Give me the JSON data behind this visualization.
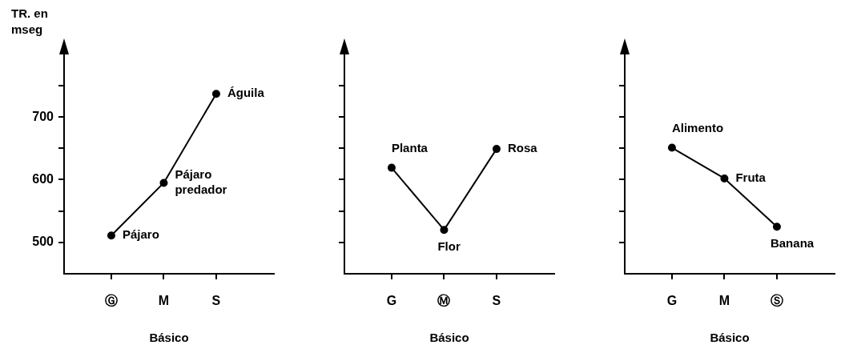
{
  "chart_data": [
    {
      "type": "line",
      "categories": [
        "Ⓖ",
        "M",
        "S"
      ],
      "values": [
        511,
        595,
        737
      ],
      "color": "#000000",
      "marker": "circle",
      "xlabel": "Básico",
      "ylabel": "TR. en mseg",
      "ylim": [
        450,
        810
      ],
      "yticks": [
        500,
        {
          "value": 550,
          "label": null
        },
        600,
        {
          "value": 650,
          "label": null
        },
        700,
        {
          "value": 750,
          "label": null
        }
      ],
      "annotations": [
        {
          "text": "Pájaro",
          "x": "Ⓖ",
          "y": 511
        },
        {
          "text": "Pájaro predador",
          "x": "M",
          "y": 595
        },
        {
          "text": "Águila",
          "x": "S",
          "y": 737
        }
      ]
    },
    {
      "type": "line",
      "categories": [
        "G",
        "Ⓜ",
        "S"
      ],
      "values": [
        619,
        520,
        649
      ],
      "color": "#000000",
      "marker": "circle",
      "xlabel": "Básico",
      "ylim": [
        450,
        810
      ],
      "tick_labels": "x",
      "yticks": [
        {
          "value": 500,
          "label": null
        },
        {
          "value": 550,
          "label": null
        },
        {
          "value": 600,
          "label": null
        },
        {
          "value": 650,
          "label": null
        },
        {
          "value": 700,
          "label": null
        },
        {
          "value": 750,
          "label": null
        }
      ],
      "annotations": [
        {
          "text": "Planta",
          "x": "G",
          "y": 619
        },
        {
          "text": "Flor",
          "x": "Ⓜ",
          "y": 520
        },
        {
          "text": "Rosa",
          "x": "S",
          "y": 649
        }
      ]
    },
    {
      "type": "line",
      "categories": [
        "G",
        "M",
        "Ⓢ"
      ],
      "values": [
        651,
        602,
        525
      ],
      "color": "#000000",
      "marker": "circle",
      "xlabel": "Básico",
      "ylim": [
        450,
        810
      ],
      "tick_labels": "x",
      "yticks": [
        {
          "value": 500,
          "label": null
        },
        {
          "value": 550,
          "label": null
        },
        {
          "value": 600,
          "label": null
        },
        {
          "value": 650,
          "label": null
        },
        {
          "value": 700,
          "label": null
        },
        {
          "value": 750,
          "label": null
        }
      ],
      "annotations": [
        {
          "text": "Alimento",
          "x": "G",
          "y": 651
        },
        {
          "text": "Fruta",
          "x": "M",
          "y": 602
        },
        {
          "text": "Banana",
          "x": "Ⓢ",
          "y": 525
        }
      ]
    }
  ]
}
